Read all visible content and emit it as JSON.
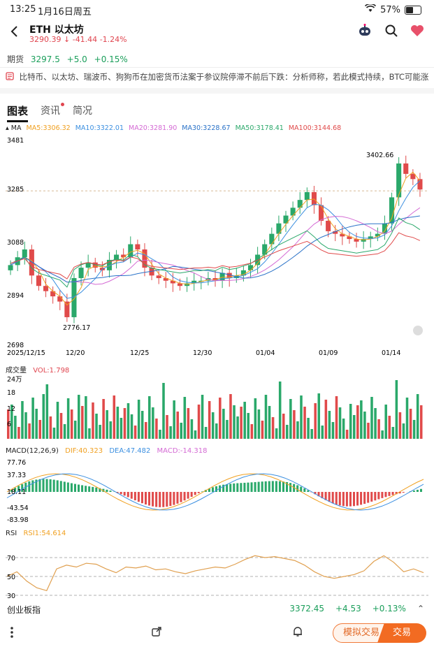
{
  "status_bar": {
    "time": "13:25",
    "date": "1月16日周五",
    "battery": "57%"
  },
  "header": {
    "title": "ETH  以太坊",
    "price": "3290.39",
    "change": "-41.44",
    "change_pct": "-1.24%"
  },
  "futures": {
    "label": "期货",
    "price": "3297.5",
    "change": "+5.0",
    "change_pct": "+0.15%"
  },
  "news": {
    "text": "比特币、以太坊、瑞波币、狗狗币在加密货币法案于参议院停滞不前后下跌：分析师称，若此模式持续，BTC可能涨至1..."
  },
  "tabs": [
    {
      "label": "图表"
    },
    {
      "label": "资讯"
    },
    {
      "label": "简况"
    }
  ],
  "ma_legend": {
    "label": "MA",
    "items": [
      {
        "text": "MA5:3306.32",
        "color": "#f0a020"
      },
      {
        "text": "MA10:3322.01",
        "color": "#3b8fe0"
      },
      {
        "text": "MA20:3281.90",
        "color": "#d46ad4"
      },
      {
        "text": "MA30:3228.67",
        "color": "#2a72c8"
      },
      {
        "text": "MA50:3178.41",
        "color": "#2aa86a"
      },
      {
        "text": "MA100:3144.68",
        "color": "#e04a4a"
      }
    ]
  },
  "price_chart": {
    "y_ticks": [
      "3481",
      "3285",
      "3088",
      "2894",
      "2698"
    ],
    "high_label": "3402.66",
    "low_label": "2776.17",
    "x_ticks": [
      "2025/12/15",
      "12/20",
      "12/25",
      "12/30",
      "01/04",
      "01/09",
      "01/14"
    ]
  },
  "volume": {
    "label": "成交量",
    "vol_text": "VOL:1.798",
    "y_ticks": [
      "24万",
      "18",
      "12",
      "6"
    ]
  },
  "macd": {
    "label": "MACD(12,26,9)",
    "dif": "DIF:40.323",
    "dea": "DEA:47.482",
    "macd": "MACD:-14.318",
    "y_ticks": [
      "77.76",
      "37.33",
      "18.11",
      "-43.54",
      "-83.98"
    ]
  },
  "rsi": {
    "label": "RSI",
    "rsi1": "RSI1:54.614",
    "y_ticks": [
      "70",
      "50",
      "30"
    ]
  },
  "index_bar": {
    "name": "创业板指",
    "price": "3372.45",
    "change": "+4.53",
    "change_pct": "+0.13%"
  },
  "toolbar": {
    "sim_label": "模拟交易",
    "trade_label": "交易"
  },
  "chart_data": [
    {
      "type": "candlestick",
      "title": "ETH 以太坊",
      "x_ticks": [
        "2025/12/15",
        "12/20",
        "12/25",
        "12/30",
        "01/04",
        "01/09",
        "01/14"
      ],
      "ylim": [
        2698,
        3481
      ],
      "close_approx": [
        3000,
        3030,
        3060,
        2960,
        2920,
        2900,
        2880,
        2860,
        2800,
        2950,
        2990,
        3010,
        2990,
        2980,
        3020,
        3040,
        3030,
        3080,
        3060,
        2990,
        2960,
        2950,
        2940,
        2930,
        2920,
        2930,
        2940,
        2940,
        2950,
        2940,
        2970,
        2950,
        2960,
        2980,
        3000,
        3040,
        3080,
        3120,
        3160,
        3190,
        3220,
        3250,
        3280,
        3230,
        3170,
        3130,
        3120,
        3110,
        3100,
        3090,
        3100,
        3110,
        3120,
        3160,
        3260,
        3390,
        3350,
        3330,
        3290
      ],
      "high": 3402.66,
      "low": 2776.17
    },
    {
      "type": "bar",
      "title": "成交量",
      "ylim": [
        0,
        24
      ]
    },
    {
      "type": "line",
      "title": "MACD(12,26,9)",
      "ylim": [
        -83.98,
        77.76
      ]
    },
    {
      "type": "line",
      "title": "RSI",
      "ylim": [
        30,
        70
      ],
      "values_approx": [
        50,
        55,
        45,
        38,
        35,
        58,
        62,
        60,
        64,
        63,
        58,
        54,
        60,
        59,
        61,
        57,
        58,
        55,
        53,
        56,
        58,
        60,
        59,
        63,
        68,
        72,
        70,
        71,
        69,
        67,
        62,
        55,
        50,
        48,
        50,
        52,
        56,
        66,
        72,
        65,
        55,
        58,
        54
      ]
    }
  ]
}
